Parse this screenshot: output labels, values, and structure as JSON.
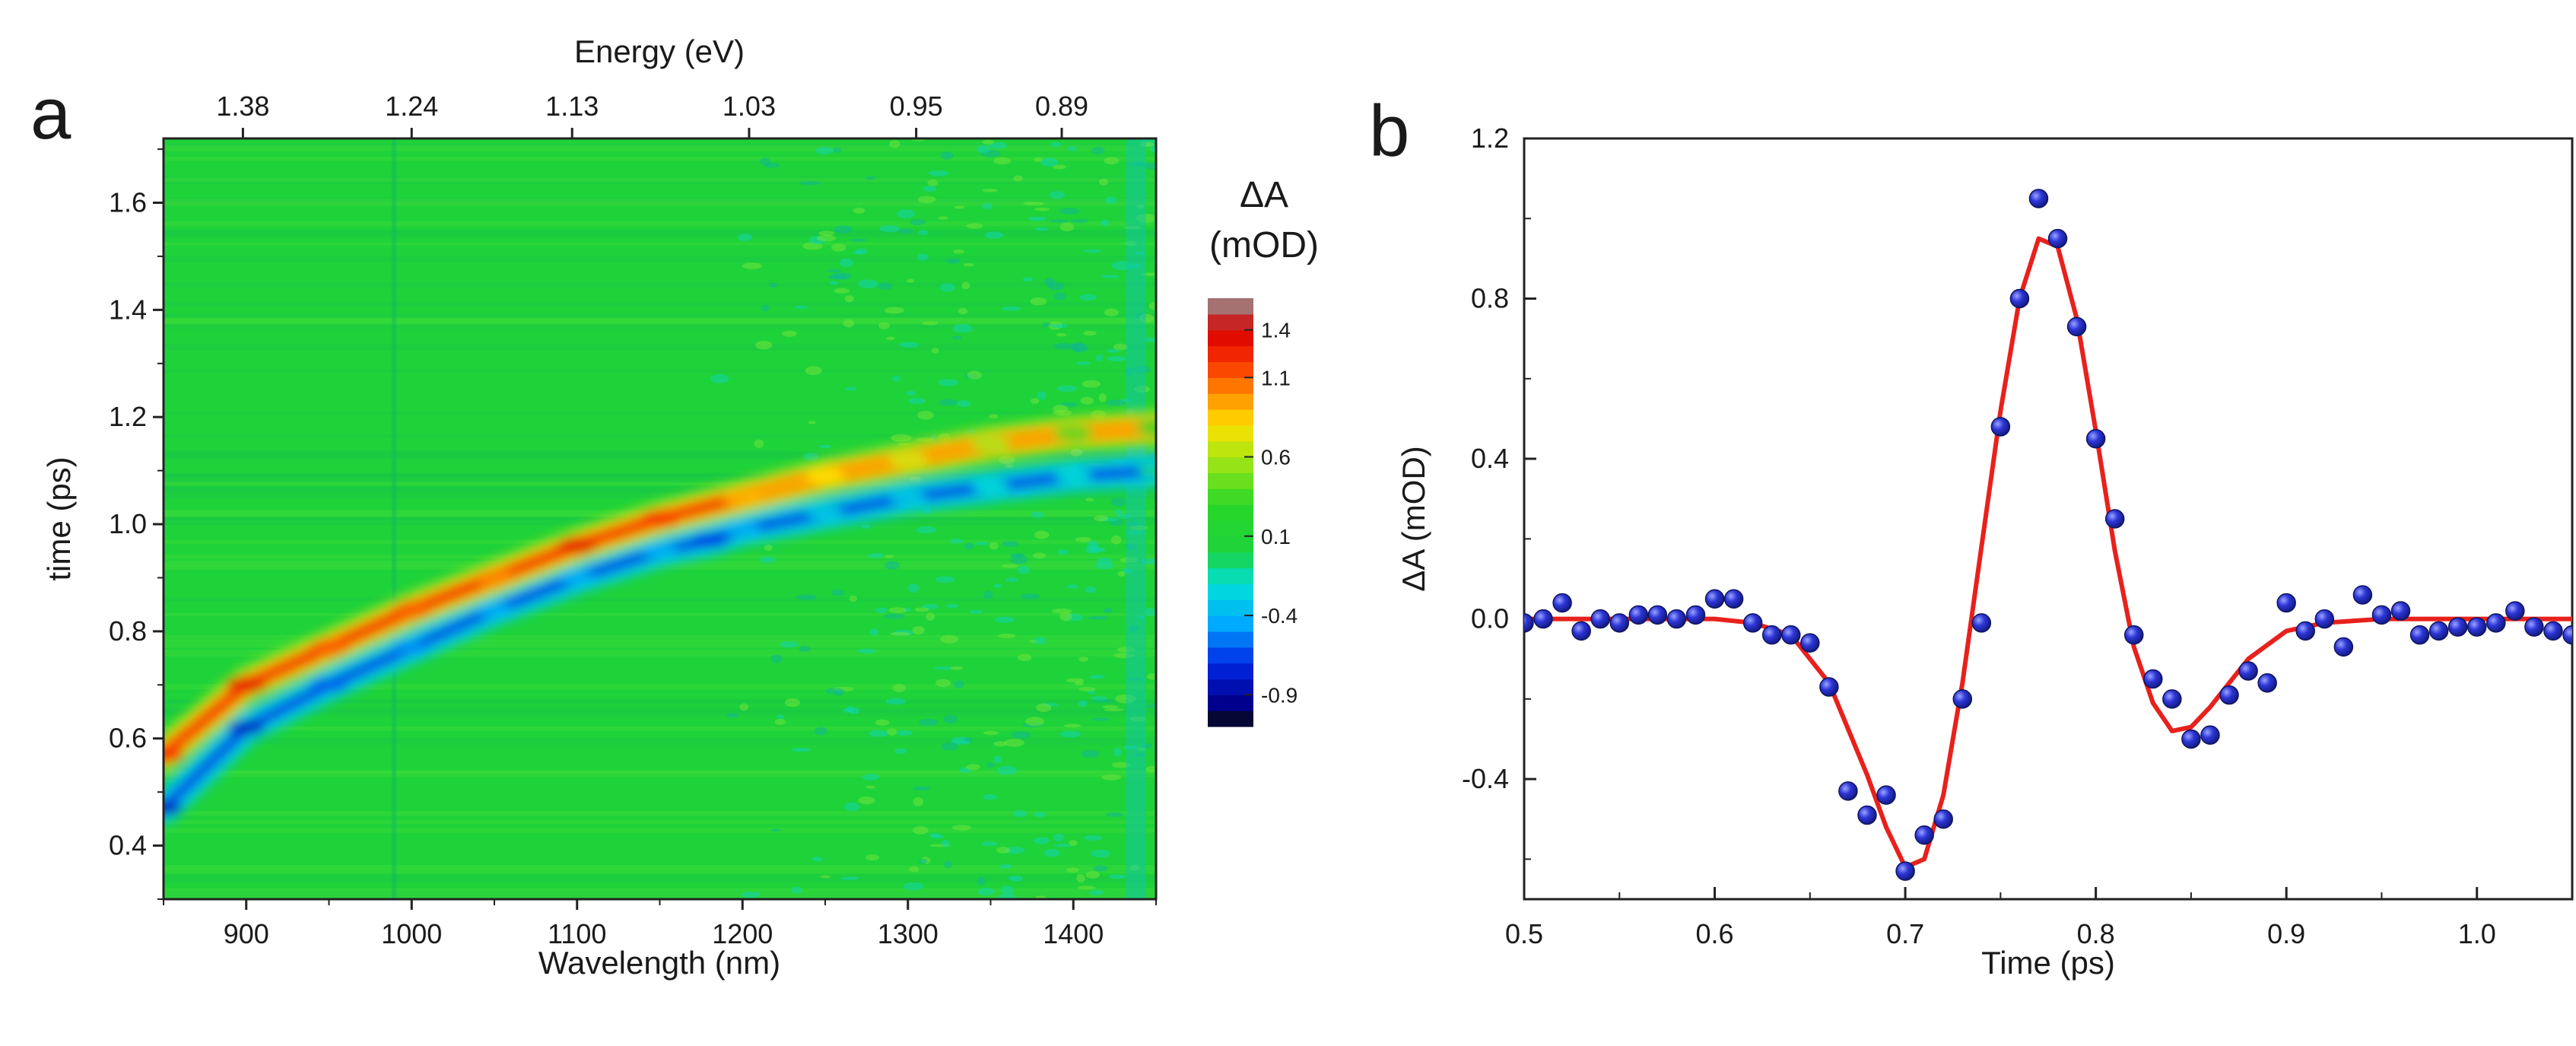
{
  "chart_data": [
    {
      "panel": "a",
      "type": "heatmap",
      "xlabel": "Wavelength (nm)",
      "ylabel": "time (ps)",
      "top_axis_label": "Energy (eV)",
      "xlim": [
        850,
        1450
      ],
      "ylim": [
        0.3,
        1.72
      ],
      "x_ticks": [
        900,
        1000,
        1100,
        1200,
        1300,
        1400
      ],
      "y_ticks": [
        0.4,
        0.6,
        0.8,
        1.0,
        1.2,
        1.4,
        1.6
      ],
      "top_ticks": [
        {
          "label": "1.38",
          "wavelength": 898
        },
        {
          "label": "1.24",
          "wavelength": 1000
        },
        {
          "label": "1.13",
          "wavelength": 1097
        },
        {
          "label": "1.03",
          "wavelength": 1204
        },
        {
          "label": "0.95",
          "wavelength": 1305
        },
        {
          "label": "0.89",
          "wavelength": 1393
        }
      ],
      "colorbar": {
        "title_line1": "ΔA",
        "title_line2": "(mOD)",
        "range": [
          -1.1,
          1.6
        ],
        "ticks": [
          {
            "label": "1.4",
            "value": 1.4
          },
          {
            "label": "1.1",
            "value": 1.1
          },
          {
            "label": "0.6",
            "value": 0.6
          },
          {
            "label": "0.1",
            "value": 0.1
          },
          {
            "label": "-0.4",
            "value": -0.4
          },
          {
            "label": "-0.9",
            "value": -0.9
          }
        ]
      },
      "positive_ridge": [
        {
          "wavelength": 850,
          "time": 0.57,
          "dA": 1.2
        },
        {
          "wavelength": 900,
          "time": 0.7,
          "dA": 1.3
        },
        {
          "wavelength": 950,
          "time": 0.77,
          "dA": 1.1
        },
        {
          "wavelength": 1000,
          "time": 0.84,
          "dA": 1.1
        },
        {
          "wavelength": 1050,
          "time": 0.9,
          "dA": 1.0
        },
        {
          "wavelength": 1100,
          "time": 0.96,
          "dA": 1.3
        },
        {
          "wavelength": 1150,
          "time": 1.01,
          "dA": 1.2
        },
        {
          "wavelength": 1200,
          "time": 1.05,
          "dA": 0.9
        },
        {
          "wavelength": 1250,
          "time": 1.09,
          "dA": 0.8
        },
        {
          "wavelength": 1300,
          "time": 1.12,
          "dA": 0.7
        },
        {
          "wavelength": 1350,
          "time": 1.15,
          "dA": 0.6
        },
        {
          "wavelength": 1400,
          "time": 1.17,
          "dA": 0.4
        },
        {
          "wavelength": 1450,
          "time": 1.18,
          "dA": 0.3
        }
      ],
      "negative_ridge": [
        {
          "wavelength": 850,
          "time": 0.47,
          "dA": -0.8
        },
        {
          "wavelength": 900,
          "time": 0.62,
          "dA": -0.8
        },
        {
          "wavelength": 950,
          "time": 0.7,
          "dA": -0.6
        },
        {
          "wavelength": 1000,
          "time": 0.77,
          "dA": -0.5
        },
        {
          "wavelength": 1050,
          "time": 0.84,
          "dA": -0.4
        },
        {
          "wavelength": 1100,
          "time": 0.9,
          "dA": -0.4
        },
        {
          "wavelength": 1150,
          "time": 0.95,
          "dA": -0.4
        },
        {
          "wavelength": 1180,
          "time": 0.97,
          "dA": -0.7
        },
        {
          "wavelength": 1200,
          "time": 0.99,
          "dA": -0.4
        },
        {
          "wavelength": 1250,
          "time": 1.02,
          "dA": -0.3
        },
        {
          "wavelength": 1300,
          "time": 1.05,
          "dA": -0.3
        },
        {
          "wavelength": 1350,
          "time": 1.07,
          "dA": -0.2
        },
        {
          "wavelength": 1400,
          "time": 1.09,
          "dA": -0.2
        },
        {
          "wavelength": 1450,
          "time": 1.1,
          "dA": -0.1
        }
      ]
    },
    {
      "panel": "b",
      "type": "scatter",
      "xlabel": "Time (ps)",
      "ylabel": "ΔA (mOD)",
      "xlim": [
        0.5,
        1.05
      ],
      "ylim": [
        -0.7,
        1.2
      ],
      "x_ticks": [
        0.5,
        0.6,
        0.7,
        0.8,
        0.9,
        1.0
      ],
      "y_ticks": [
        -0.4,
        0.0,
        0.4,
        0.8,
        1.2
      ],
      "x_tick_labels": [
        "0.5",
        "0.6",
        "0.7",
        "0.8",
        "0.9",
        "1.0"
      ],
      "y_tick_labels": [
        "-0.4",
        "0.0",
        "0.4",
        "0.8",
        "1.2"
      ],
      "colors": {
        "points": "#2c35d6",
        "fit": "#e8211c"
      },
      "points": [
        {
          "x": 0.5,
          "y": -0.01
        },
        {
          "x": 0.51,
          "y": 0.0
        },
        {
          "x": 0.52,
          "y": 0.04
        },
        {
          "x": 0.53,
          "y": -0.03
        },
        {
          "x": 0.54,
          "y": 0.0
        },
        {
          "x": 0.55,
          "y": -0.01
        },
        {
          "x": 0.56,
          "y": 0.01
        },
        {
          "x": 0.57,
          "y": 0.01
        },
        {
          "x": 0.58,
          "y": 0.0
        },
        {
          "x": 0.59,
          "y": 0.01
        },
        {
          "x": 0.6,
          "y": 0.05
        },
        {
          "x": 0.61,
          "y": 0.05
        },
        {
          "x": 0.62,
          "y": -0.01
        },
        {
          "x": 0.63,
          "y": -0.04
        },
        {
          "x": 0.64,
          "y": -0.04
        },
        {
          "x": 0.65,
          "y": -0.06
        },
        {
          "x": 0.66,
          "y": -0.17
        },
        {
          "x": 0.67,
          "y": -0.43
        },
        {
          "x": 0.68,
          "y": -0.49
        },
        {
          "x": 0.69,
          "y": -0.44
        },
        {
          "x": 0.7,
          "y": -0.63
        },
        {
          "x": 0.71,
          "y": -0.54
        },
        {
          "x": 0.72,
          "y": -0.5
        },
        {
          "x": 0.73,
          "y": -0.2
        },
        {
          "x": 0.74,
          "y": -0.01
        },
        {
          "x": 0.75,
          "y": 0.48
        },
        {
          "x": 0.76,
          "y": 0.8
        },
        {
          "x": 0.77,
          "y": 1.05
        },
        {
          "x": 0.78,
          "y": 0.95
        },
        {
          "x": 0.79,
          "y": 0.73
        },
        {
          "x": 0.8,
          "y": 0.45
        },
        {
          "x": 0.81,
          "y": 0.25
        },
        {
          "x": 0.82,
          "y": -0.04
        },
        {
          "x": 0.83,
          "y": -0.15
        },
        {
          "x": 0.84,
          "y": -0.2
        },
        {
          "x": 0.85,
          "y": -0.3
        },
        {
          "x": 0.86,
          "y": -0.29
        },
        {
          "x": 0.87,
          "y": -0.19
        },
        {
          "x": 0.88,
          "y": -0.13
        },
        {
          "x": 0.89,
          "y": -0.16
        },
        {
          "x": 0.9,
          "y": 0.04
        },
        {
          "x": 0.91,
          "y": -0.03
        },
        {
          "x": 0.92,
          "y": 0.0
        },
        {
          "x": 0.93,
          "y": -0.07
        },
        {
          "x": 0.94,
          "y": 0.06
        },
        {
          "x": 0.95,
          "y": 0.01
        },
        {
          "x": 0.96,
          "y": 0.02
        },
        {
          "x": 0.97,
          "y": -0.04
        },
        {
          "x": 0.98,
          "y": -0.03
        },
        {
          "x": 0.99,
          "y": -0.02
        },
        {
          "x": 1.0,
          "y": -0.02
        },
        {
          "x": 1.01,
          "y": -0.01
        },
        {
          "x": 1.02,
          "y": 0.02
        },
        {
          "x": 1.03,
          "y": -0.02
        },
        {
          "x": 1.04,
          "y": -0.03
        },
        {
          "x": 1.05,
          "y": -0.04
        }
      ],
      "fit_curve": [
        {
          "x": 0.5,
          "y": 0.0
        },
        {
          "x": 0.6,
          "y": 0.0
        },
        {
          "x": 0.62,
          "y": -0.01
        },
        {
          "x": 0.64,
          "y": -0.04
        },
        {
          "x": 0.66,
          "y": -0.16
        },
        {
          "x": 0.68,
          "y": -0.39
        },
        {
          "x": 0.69,
          "y": -0.52
        },
        {
          "x": 0.7,
          "y": -0.62
        },
        {
          "x": 0.71,
          "y": -0.6
        },
        {
          "x": 0.72,
          "y": -0.44
        },
        {
          "x": 0.73,
          "y": -0.16
        },
        {
          "x": 0.74,
          "y": 0.18
        },
        {
          "x": 0.75,
          "y": 0.52
        },
        {
          "x": 0.76,
          "y": 0.8
        },
        {
          "x": 0.77,
          "y": 0.95
        },
        {
          "x": 0.78,
          "y": 0.93
        },
        {
          "x": 0.79,
          "y": 0.75
        },
        {
          "x": 0.8,
          "y": 0.47
        },
        {
          "x": 0.81,
          "y": 0.17
        },
        {
          "x": 0.82,
          "y": -0.07
        },
        {
          "x": 0.83,
          "y": -0.21
        },
        {
          "x": 0.84,
          "y": -0.28
        },
        {
          "x": 0.85,
          "y": -0.27
        },
        {
          "x": 0.86,
          "y": -0.22
        },
        {
          "x": 0.87,
          "y": -0.16
        },
        {
          "x": 0.88,
          "y": -0.1
        },
        {
          "x": 0.9,
          "y": -0.03
        },
        {
          "x": 0.92,
          "y": -0.01
        },
        {
          "x": 0.95,
          "y": 0.0
        },
        {
          "x": 1.05,
          "y": 0.0
        }
      ]
    }
  ],
  "labels": {
    "panel_a": "a",
    "panel_b": "b"
  }
}
